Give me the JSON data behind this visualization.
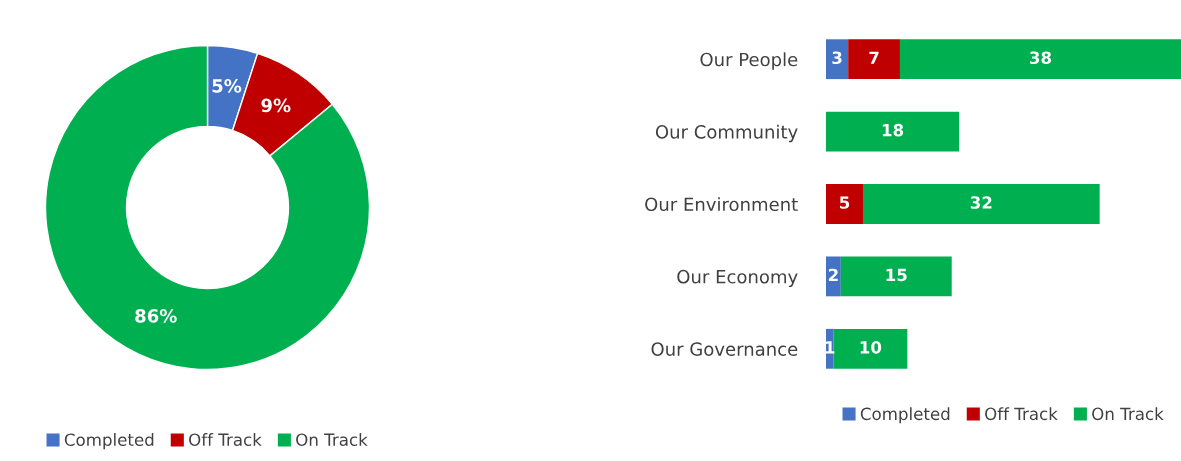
{
  "chart_data": [
    {
      "type": "donut",
      "categories": [
        "Completed",
        "Off Track",
        "On Track"
      ],
      "values": [
        5,
        9,
        86
      ],
      "colors": [
        "#4472c4",
        "#c00000",
        "#00b050"
      ],
      "value_labels": [
        "5%",
        "9%",
        "86%"
      ],
      "legend": "bottom"
    },
    {
      "type": "bar",
      "orientation": "horizontal",
      "stacked": true,
      "categories": [
        "Our People",
        "Our Community",
        "Our Environment",
        "Our Economy",
        "Our Governance"
      ],
      "series": [
        {
          "name": "Completed",
          "color": "#4472c4",
          "values": [
            3,
            null,
            null,
            2,
            1
          ]
        },
        {
          "name": "Off Track",
          "color": "#c00000",
          "values": [
            7,
            null,
            5,
            null,
            null
          ]
        },
        {
          "name": "On Track",
          "color": "#00b050",
          "values": [
            38,
            18,
            32,
            15,
            10
          ]
        }
      ],
      "xlim": [
        0,
        48
      ],
      "tick_labels": "y",
      "data_labels": true,
      "legend": "bottom"
    }
  ]
}
